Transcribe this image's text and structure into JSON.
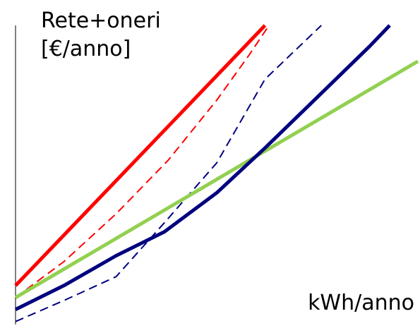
{
  "chart_data": {
    "type": "line",
    "ylabel_lines": [
      "Rete+oneri",
      "[€/anno]"
    ],
    "xlabel": "kWh/anno",
    "xlim": [
      0,
      100
    ],
    "ylim": [
      0,
      100
    ],
    "grid": false,
    "series": [
      {
        "color": "#ff0000",
        "dash": "solid",
        "x": [
          0,
          62
        ],
        "y": [
          13,
          100
        ]
      },
      {
        "color": "#ff0000",
        "dash": "dashed",
        "x": [
          0,
          12,
          25,
          38,
          50,
          58,
          63
        ],
        "y": [
          9,
          21,
          37,
          55,
          75,
          90,
          100
        ]
      },
      {
        "color": "#00007f",
        "dash": "dashed",
        "x": [
          0,
          12,
          25,
          37,
          50,
          62,
          76
        ],
        "y": [
          1,
          8,
          16,
          34,
          54,
          82,
          100
        ]
      },
      {
        "color": "#00007f",
        "dash": "solid",
        "x": [
          0,
          12,
          25,
          37,
          50,
          62,
          75,
          88,
          93
        ],
        "y": [
          5,
          13,
          23,
          31,
          44,
          59,
          76,
          93,
          100
        ]
      },
      {
        "color": "#92d050",
        "dash": "solid",
        "x": [
          0,
          100
        ],
        "y": [
          9,
          88
        ]
      }
    ]
  }
}
